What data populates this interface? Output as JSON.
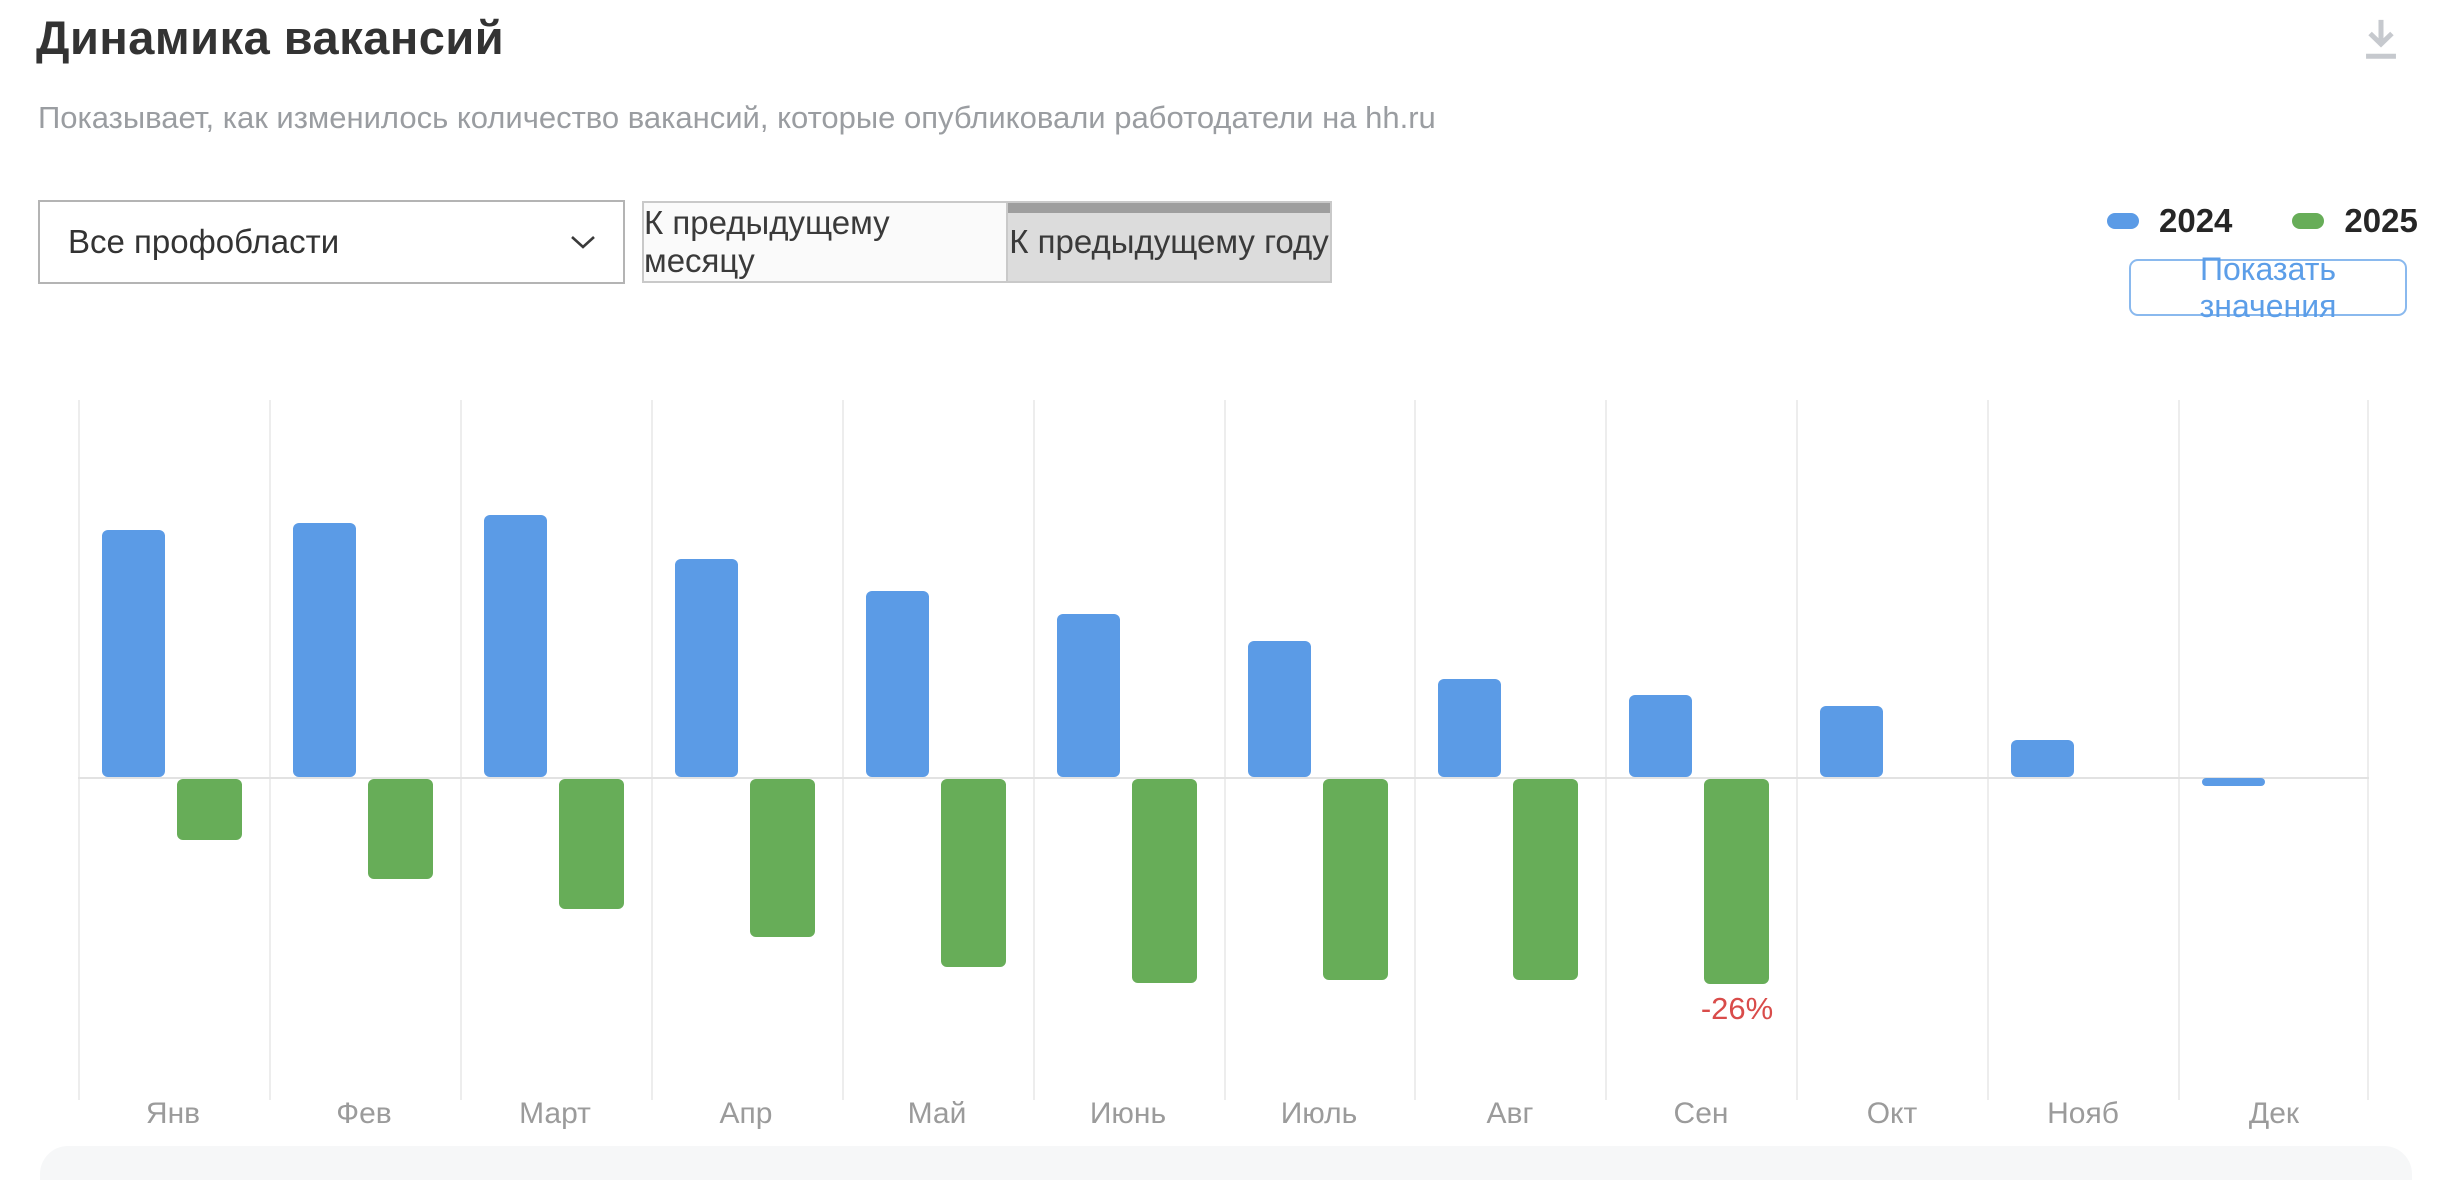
{
  "header": {
    "title": "Динамика вакансий",
    "subtitle": "Показывает, как изменилось количество вакансий, которые опубликовали работодатели на hh.ru"
  },
  "icons": {
    "download": "download-icon",
    "select_chevron": "chevron-down-icon"
  },
  "controls": {
    "profarea_select": {
      "value": "Все профобласти"
    },
    "mode_tabs": [
      {
        "name": "tab-prev-month",
        "label": "К предыдущему месяцу",
        "selected": false
      },
      {
        "name": "tab-prev-year",
        "label": "К предыдущему году",
        "selected": true
      }
    ],
    "show_values_button": "Показать значения"
  },
  "legend": [
    {
      "name": "2024",
      "label": "2024",
      "color": "#5b9be6"
    },
    {
      "name": "2025",
      "label": "2025",
      "color": "#67ad58"
    }
  ],
  "chart_data": {
    "type": "bar",
    "title": "Динамика вакансий",
    "unit": "percent change, year over year",
    "categories": [
      "Янв",
      "Фев",
      "Март",
      "Апр",
      "Май",
      "Июнь",
      "Июль",
      "Авг",
      "Сен",
      "Окт",
      "Нояб",
      "Дек"
    ],
    "series": [
      {
        "name": "2024",
        "color": "#5b9be6",
        "values": [
          31.3,
          32.2,
          33.2,
          27.6,
          23.6,
          20.7,
          17.2,
          12.4,
          10.4,
          9.0,
          4.7,
          -1.0
        ]
      },
      {
        "name": "2025",
        "color": "#67ad58",
        "values": [
          -7.7,
          -12.7,
          -16.5,
          -20.0,
          -23.8,
          -25.9,
          -25.5,
          -25.5,
          -26.0,
          null,
          null,
          null
        ]
      }
    ],
    "annotations": [
      {
        "category": "Сен",
        "category_index": 8,
        "series": "2025",
        "text": "-26%",
        "color": "#d94c4a"
      }
    ],
    "ylim": [
      -38,
      48
    ],
    "baseline": 0,
    "grid": "vertical-only",
    "legend_position": "top-right"
  }
}
